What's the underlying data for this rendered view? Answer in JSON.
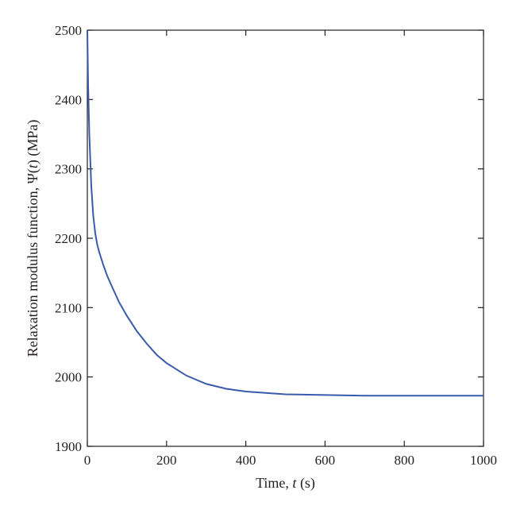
{
  "chart_data": {
    "type": "line",
    "title": "",
    "xlabel": "Time, t (s)",
    "ylabel": "Relaxation modulus function, Ψ(t) (MPa)",
    "xlim": [
      0,
      1000
    ],
    "ylim": [
      1900,
      2500
    ],
    "xticks": [
      0,
      200,
      400,
      600,
      800,
      1000
    ],
    "yticks": [
      1900,
      2000,
      2100,
      2200,
      2300,
      2400,
      2500
    ],
    "grid": false,
    "legend": "none",
    "series": [
      {
        "color": "#3a5bab",
        "x": [
          0,
          2,
          5,
          10,
          15,
          20,
          25,
          30,
          40,
          50,
          60,
          80,
          100,
          125,
          150,
          175,
          200,
          250,
          300,
          350,
          400,
          450,
          500,
          600,
          700,
          800,
          900,
          1000
        ],
        "y": [
          2500,
          2420,
          2350,
          2275,
          2232,
          2207,
          2191,
          2180,
          2162,
          2146,
          2133,
          2108,
          2088,
          2066,
          2048,
          2032,
          2020,
          2002,
          1990,
          1983,
          1979,
          1977,
          1975,
          1974,
          1973,
          1973,
          1973,
          1973
        ]
      }
    ]
  }
}
